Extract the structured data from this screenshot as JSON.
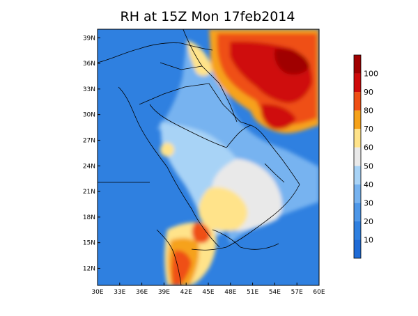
{
  "title": "RH at 15Z Mon 17feb2014",
  "chart_data": {
    "type": "heatmap",
    "title": "RH at 15Z Mon 17feb2014",
    "variable": "RH",
    "lon_range": [
      30,
      60
    ],
    "lat_range": [
      10,
      40
    ],
    "lon_ticks": [
      "30E",
      "33E",
      "36E",
      "39E",
      "42E",
      "45E",
      "48E",
      "51E",
      "54E",
      "57E",
      "60E"
    ],
    "lat_ticks": [
      "12N",
      "15N",
      "18N",
      "21N",
      "24N",
      "27N",
      "30N",
      "33N",
      "36N",
      "39N"
    ],
    "legend_position": "right",
    "colorbar": {
      "bins": [
        {
          "range": [
            0,
            10
          ],
          "color": "#1f6bd6"
        },
        {
          "range": [
            10,
            20
          ],
          "color": "#2f80e0"
        },
        {
          "range": [
            20,
            30
          ],
          "color": "#4d97e8"
        },
        {
          "range": [
            30,
            40
          ],
          "color": "#77b3f0"
        },
        {
          "range": [
            40,
            50
          ],
          "color": "#a8d3f6"
        },
        {
          "range": [
            50,
            60
          ],
          "color": "#e9e9e9"
        },
        {
          "range": [
            60,
            70
          ],
          "color": "#ffe38a"
        },
        {
          "range": [
            70,
            80
          ],
          "color": "#f6a21a"
        },
        {
          "range": [
            80,
            90
          ],
          "color": "#ef4f14"
        },
        {
          "range": [
            90,
            100
          ],
          "color": "#cf0a0a"
        },
        {
          "range": [
            100,
            110
          ],
          "color": "#a00000"
        }
      ],
      "labels": [
        "10",
        "20",
        "30",
        "40",
        "50",
        "60",
        "70",
        "80",
        "90",
        "100"
      ]
    }
  }
}
